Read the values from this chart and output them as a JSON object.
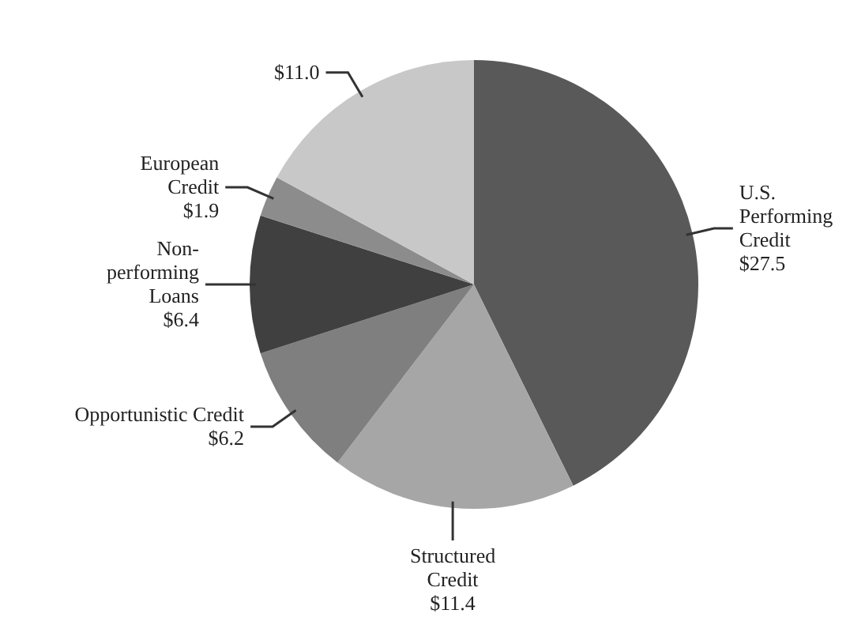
{
  "chart_data": {
    "type": "pie",
    "categories": [
      "U.S. Performing Credit",
      "Structured Credit",
      "Opportunistic Credit",
      "Non-performing Loans",
      "European Credit",
      null
    ],
    "values": [
      27.5,
      11.4,
      6.2,
      6.4,
      1.9,
      11.0
    ],
    "colors": [
      "#595959",
      "#a6a6a6",
      "#7f7f7f",
      "#404040",
      "#8c8c8c",
      "#c8c8c8"
    ],
    "value_labels": [
      "$27.5",
      "$11.4",
      "$6.2",
      "$6.4",
      "$1.9",
      "$11.0"
    ]
  }
}
